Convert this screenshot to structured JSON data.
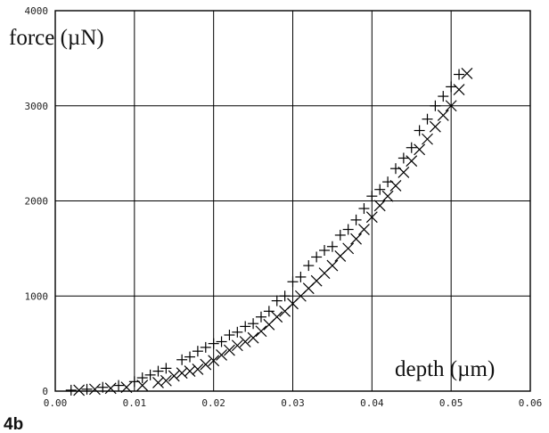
{
  "figure_label": "4b",
  "chart_data": {
    "type": "scatter",
    "title": "",
    "xlabel": "depth (µm)",
    "ylabel": "force (µN)",
    "xlim": [
      0,
      0.06
    ],
    "ylim": [
      0,
      4000
    ],
    "x_ticks": [
      "0.00",
      "0.01",
      "0.02",
      "0.03",
      "0.04",
      "0.05",
      "0.06"
    ],
    "y_ticks": [
      "0",
      "1000",
      "2000",
      "3000",
      "4000"
    ],
    "grid": true,
    "series": [
      {
        "marker": "plus",
        "points": [
          [
            0.002,
            10
          ],
          [
            0.004,
            20
          ],
          [
            0.006,
            40
          ],
          [
            0.008,
            60
          ],
          [
            0.01,
            100
          ],
          [
            0.011,
            140
          ],
          [
            0.012,
            170
          ],
          [
            0.013,
            210
          ],
          [
            0.014,
            240
          ],
          [
            0.016,
            330
          ],
          [
            0.017,
            360
          ],
          [
            0.018,
            420
          ],
          [
            0.019,
            460
          ],
          [
            0.02,
            500
          ],
          [
            0.021,
            520
          ],
          [
            0.022,
            590
          ],
          [
            0.023,
            620
          ],
          [
            0.024,
            680
          ],
          [
            0.025,
            710
          ],
          [
            0.026,
            780
          ],
          [
            0.027,
            840
          ],
          [
            0.028,
            950
          ],
          [
            0.029,
            1000
          ],
          [
            0.03,
            1150
          ],
          [
            0.031,
            1200
          ],
          [
            0.032,
            1320
          ],
          [
            0.033,
            1410
          ],
          [
            0.034,
            1480
          ],
          [
            0.035,
            1520
          ],
          [
            0.036,
            1640
          ],
          [
            0.037,
            1700
          ],
          [
            0.038,
            1800
          ],
          [
            0.039,
            1920
          ],
          [
            0.04,
            2050
          ],
          [
            0.041,
            2120
          ],
          [
            0.042,
            2200
          ],
          [
            0.043,
            2340
          ],
          [
            0.044,
            2450
          ],
          [
            0.045,
            2560
          ],
          [
            0.046,
            2740
          ],
          [
            0.047,
            2860
          ],
          [
            0.048,
            3000
          ],
          [
            0.049,
            3100
          ],
          [
            0.05,
            3200
          ],
          [
            0.051,
            3330
          ]
        ]
      },
      {
        "marker": "cross",
        "points": [
          [
            0.003,
            10
          ],
          [
            0.005,
            20
          ],
          [
            0.007,
            30
          ],
          [
            0.009,
            40
          ],
          [
            0.011,
            60
          ],
          [
            0.013,
            90
          ],
          [
            0.014,
            110
          ],
          [
            0.015,
            160
          ],
          [
            0.016,
            190
          ],
          [
            0.017,
            210
          ],
          [
            0.018,
            230
          ],
          [
            0.019,
            280
          ],
          [
            0.02,
            320
          ],
          [
            0.021,
            380
          ],
          [
            0.022,
            430
          ],
          [
            0.023,
            480
          ],
          [
            0.024,
            520
          ],
          [
            0.025,
            560
          ],
          [
            0.026,
            630
          ],
          [
            0.027,
            700
          ],
          [
            0.028,
            780
          ],
          [
            0.029,
            840
          ],
          [
            0.03,
            920
          ],
          [
            0.031,
            1000
          ],
          [
            0.032,
            1080
          ],
          [
            0.033,
            1160
          ],
          [
            0.034,
            1240
          ],
          [
            0.035,
            1320
          ],
          [
            0.036,
            1420
          ],
          [
            0.037,
            1500
          ],
          [
            0.038,
            1600
          ],
          [
            0.039,
            1700
          ],
          [
            0.04,
            1830
          ],
          [
            0.041,
            1950
          ],
          [
            0.042,
            2050
          ],
          [
            0.043,
            2160
          ],
          [
            0.044,
            2300
          ],
          [
            0.045,
            2420
          ],
          [
            0.046,
            2540
          ],
          [
            0.047,
            2650
          ],
          [
            0.048,
            2780
          ],
          [
            0.049,
            2900
          ],
          [
            0.05,
            3000
          ],
          [
            0.051,
            3170
          ],
          [
            0.052,
            3340
          ]
        ]
      }
    ]
  }
}
